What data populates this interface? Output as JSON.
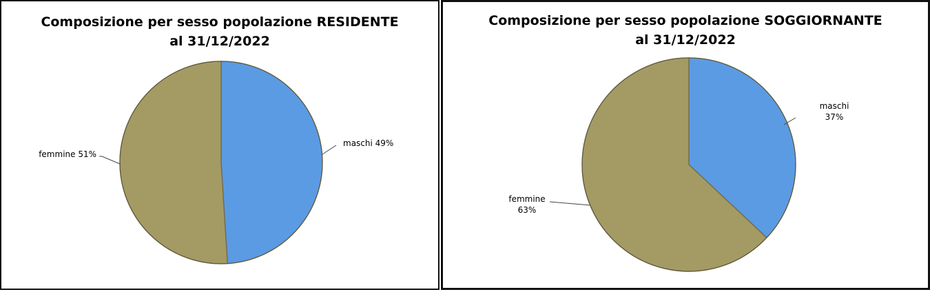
{
  "chart_data": [
    {
      "type": "pie",
      "title_line1": "Composizione per sesso popolazione RESIDENTE",
      "title_line2": "al 31/12/2022",
      "slices": [
        {
          "name": "maschi",
          "value": 49,
          "pct": "49%"
        },
        {
          "name": "femmine",
          "value": 51,
          "pct": "51%"
        }
      ],
      "colors": {
        "maschi": "#5b9be3",
        "femmine": "#a49a63"
      }
    },
    {
      "type": "pie",
      "title_line1": "Composizione per sesso popolazione SOGGIORNANTE",
      "title_line2": "al 31/12/2022",
      "slices": [
        {
          "name": "maschi",
          "value": 37,
          "pct": "37%"
        },
        {
          "name": "femmine",
          "value": 63,
          "pct": "63%"
        }
      ],
      "colors": {
        "maschi": "#5b9be3",
        "femmine": "#a49a63"
      }
    }
  ]
}
